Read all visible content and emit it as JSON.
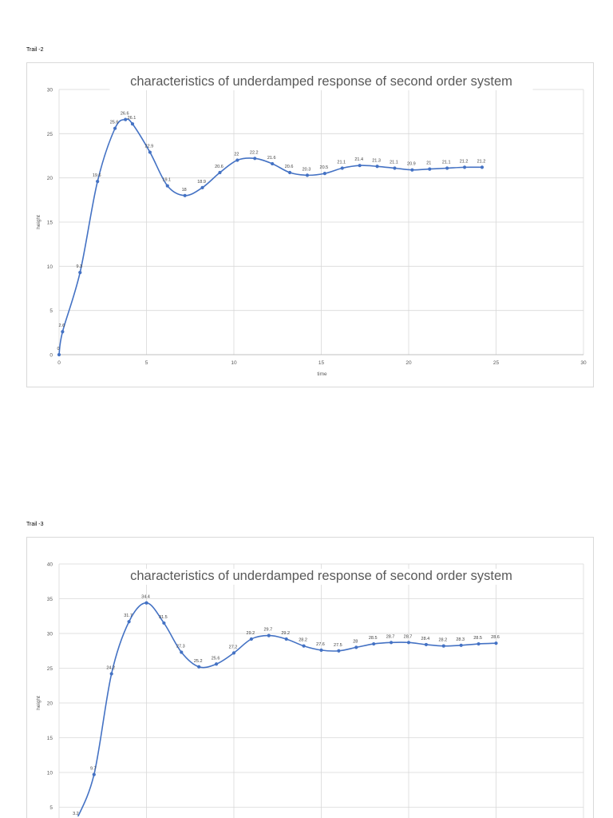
{
  "trails": [
    {
      "label": "Trail -2"
    },
    {
      "label": "Trail -3"
    }
  ],
  "chart_data": [
    {
      "type": "line",
      "title": "characteristics of underdamped response of second order system",
      "xlabel": "time",
      "ylabel": "height",
      "xlim": [
        0,
        30
      ],
      "ylim": [
        0,
        30
      ],
      "xticks": [
        0,
        5,
        10,
        15,
        20,
        25,
        30
      ],
      "yticks": [
        0,
        5,
        10,
        15,
        20,
        25,
        30
      ],
      "grid": true,
      "series": [
        {
          "name": "height",
          "color": "#4472c4",
          "x": [
            0,
            0.2,
            1.2,
            2.2,
            3.2,
            3.8,
            4.2,
            5.2,
            6.2,
            7.2,
            8.2,
            9.2,
            10.2,
            11.2,
            12.2,
            13.2,
            14.2,
            15.2,
            16.2,
            17.2,
            18.2,
            19.2,
            20.2,
            21.2,
            22.2,
            23.2,
            24.2
          ],
          "y": [
            0,
            2.6,
            9.3,
            19.6,
            25.6,
            26.6,
            26.1,
            22.9,
            19.1,
            18,
            18.9,
            20.6,
            22,
            22.2,
            21.6,
            20.6,
            20.3,
            20.5,
            21.1,
            21.4,
            21.3,
            21.1,
            20.9,
            21,
            21.1,
            21.2,
            21.2
          ],
          "labels": [
            "0",
            "2.6",
            "9.3",
            "19.6",
            "25.6",
            "26.6",
            "26.1",
            "22.9",
            "19.1",
            "18",
            "18.9",
            "20.6",
            "22",
            "22.2",
            "21.6",
            "20.6",
            "20.3",
            "20.5",
            "21.1",
            "21.4",
            "21.3",
            "21.1",
            "20.9",
            "21",
            "21.1",
            "21.2",
            "21.2"
          ]
        }
      ]
    },
    {
      "type": "line",
      "title": "characteristics of underdamped response of second order system",
      "xlabel": "",
      "ylabel": "height",
      "xlim": [
        0,
        30
      ],
      "ylim": [
        0,
        40
      ],
      "xticks": [],
      "yticks": [
        5,
        10,
        15,
        20,
        25,
        30,
        35,
        40
      ],
      "grid": true,
      "series": [
        {
          "name": "height",
          "color": "#4472c4",
          "x": [
            1,
            2,
            3,
            4,
            5,
            6,
            7,
            8,
            9,
            10,
            11,
            12,
            13,
            14,
            15,
            16,
            17,
            18,
            19,
            20,
            21,
            22,
            23,
            24,
            25
          ],
          "y": [
            3.2,
            9.7,
            24.2,
            31.7,
            34.4,
            31.5,
            27.3,
            25.2,
            25.6,
            27.2,
            29.2,
            29.7,
            29.2,
            28.2,
            27.6,
            27.5,
            28,
            28.5,
            28.7,
            28.7,
            28.4,
            28.2,
            28.3,
            28.5,
            28.6
          ],
          "labels": [
            "3.2",
            "9.7",
            "24.2",
            "31.7",
            "34.4",
            "31.5",
            "27.3",
            "25.2",
            "25.6",
            "27.2",
            "29.2",
            "29.7",
            "29.2",
            "28.2",
            "27.6",
            "27.5",
            "28",
            "28.5",
            "28.7",
            "28.7",
            "28.4",
            "28.2",
            "28.3",
            "28.5",
            "28.6"
          ]
        }
      ]
    }
  ]
}
